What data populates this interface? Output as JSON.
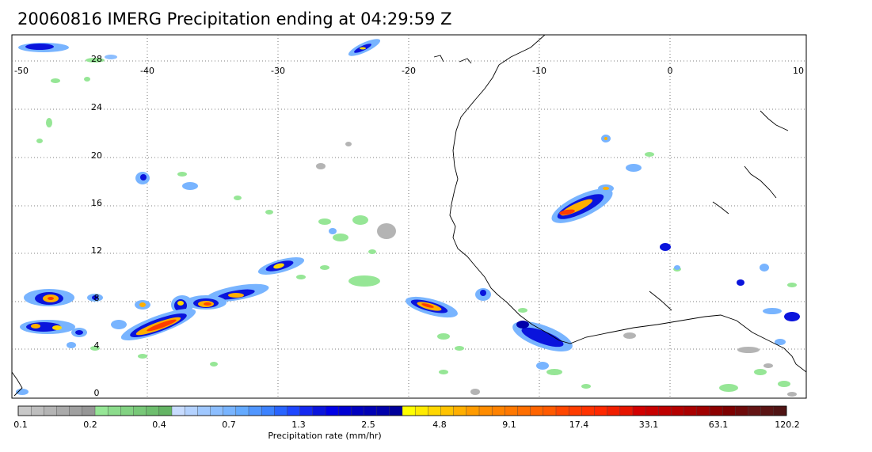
{
  "title": "20060816 IMERG Precipitation ending at 04:29:59 Z",
  "map": {
    "lon_range": [
      -50,
      10
    ],
    "lat_range": [
      -0.5,
      30
    ],
    "lon_ticks": [
      "-50",
      "-40",
      "-30",
      "-20",
      "-10",
      "0",
      "10"
    ],
    "lat_ticks": [
      "28",
      "24",
      "20",
      "16",
      "12",
      "8",
      "4",
      "0"
    ],
    "grid": "dotted"
  },
  "colorbar": {
    "title": "Precipitation rate (mm/hr)",
    "labels": [
      "0.1",
      "0.2",
      "0.4",
      "0.7",
      "1.3",
      "2.5",
      "4.8",
      "9.1",
      "17.4",
      "33.1",
      "63.1",
      "120.2"
    ],
    "colors": [
      "#c8c8c8",
      "#bebebe",
      "#b4b4b4",
      "#aaaaaa",
      "#a0a0a0",
      "#969696",
      "#96e696",
      "#8cdc8c",
      "#82d282",
      "#78c878",
      "#6ebe6e",
      "#64b464",
      "#c8dcff",
      "#b4d2ff",
      "#a0c8ff",
      "#8cbeff",
      "#78b4ff",
      "#64aaff",
      "#5096ff",
      "#3c82ff",
      "#2864ff",
      "#1e46ff",
      "#1428f0",
      "#0a14dc",
      "#0000e6",
      "#0000d2",
      "#0000be",
      "#0000b4",
      "#0000aa",
      "#00009a",
      "#ffff00",
      "#ffeb00",
      "#ffd700",
      "#ffc300",
      "#ffaf00",
      "#ff9b00",
      "#ff8c00",
      "#ff8200",
      "#ff7800",
      "#ff6e00",
      "#ff6400",
      "#ff5a00",
      "#ff4600",
      "#ff3c00",
      "#ff3200",
      "#ff2800",
      "#f01e00",
      "#e61400",
      "#d20000",
      "#c80000",
      "#be0000",
      "#b40000",
      "#aa0000",
      "#a00000",
      "#8c0000",
      "#7d0000",
      "#6e0a0a",
      "#641414",
      "#5a1414",
      "#501414"
    ]
  }
}
